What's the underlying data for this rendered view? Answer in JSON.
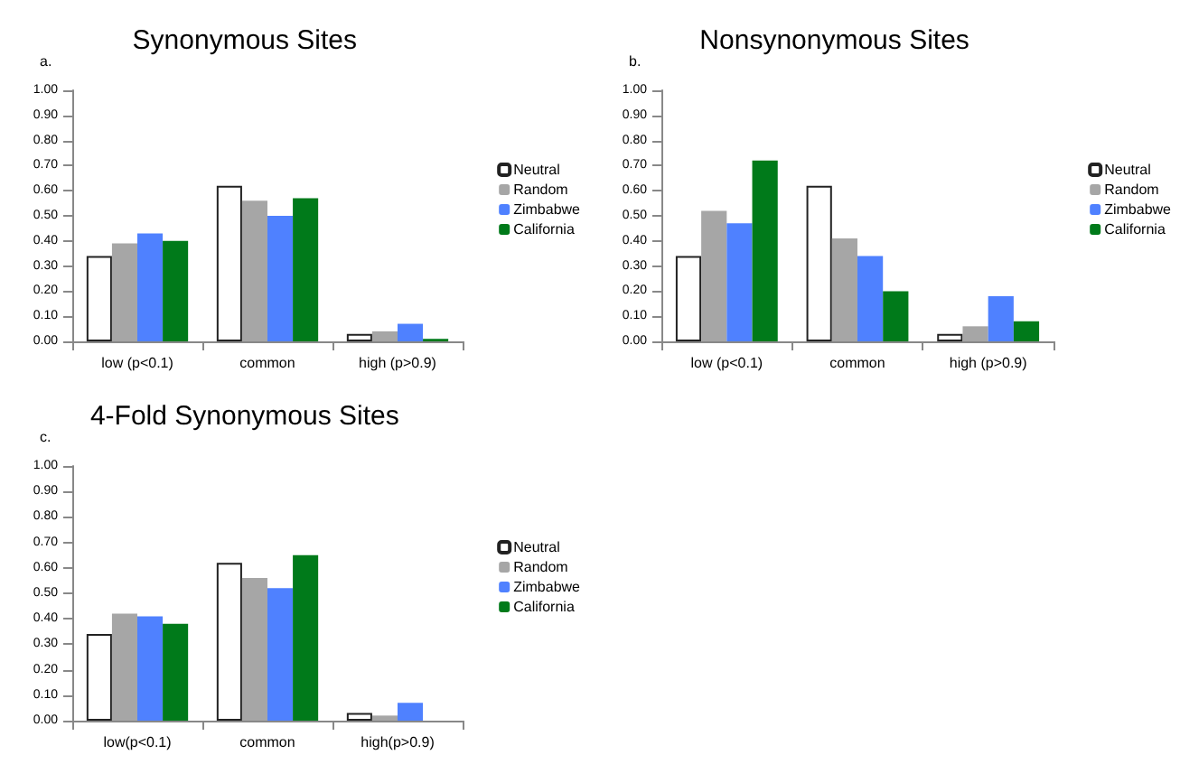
{
  "chart_data": [
    {
      "type": "bar",
      "title": "Synonymous Sites",
      "annotations": [
        "a."
      ],
      "categories": [
        "low (p<0.1)",
        "common",
        "high (p>0.9)"
      ],
      "series": [
        {
          "name": "Neutral",
          "color": "#ffffff",
          "values": [
            0.34,
            0.62,
            0.03
          ]
        },
        {
          "name": "Random",
          "color": "#a6a6a6",
          "values": [
            0.39,
            0.56,
            0.04
          ]
        },
        {
          "name": "Zimbabwe",
          "color": "#4f81ff",
          "values": [
            0.43,
            0.5,
            0.07
          ]
        },
        {
          "name": "California",
          "color": "#007a1a",
          "values": [
            0.4,
            0.57,
            0.01
          ]
        }
      ],
      "ylim": [
        0,
        1
      ],
      "yticks": [
        {
          "value": 0,
          "label": "0.00"
        },
        {
          "value": 0.1,
          "label": "0.10"
        },
        {
          "value": 0.2,
          "label": "0.20"
        },
        {
          "value": 0.3,
          "label": "0.30"
        },
        {
          "value": 0.4,
          "label": "0.40"
        },
        {
          "value": 0.5,
          "label": "0.50"
        },
        {
          "value": 0.6,
          "label": "0.60"
        },
        {
          "value": 0.7,
          "label": "0.70"
        },
        {
          "value": 0.8,
          "label": "0.80"
        },
        {
          "value": 0.9,
          "label": "0.90"
        },
        {
          "value": 1,
          "label": "1.00"
        }
      ],
      "grid": false,
      "legend": "right"
    },
    {
      "type": "bar",
      "title": "Nonsynonymous Sites",
      "annotations": [
        "b."
      ],
      "categories": [
        "low (p<0.1)",
        "common",
        "high (p>0.9)"
      ],
      "series": [
        {
          "name": "Neutral",
          "color": "#ffffff",
          "values": [
            0.34,
            0.62,
            0.03
          ]
        },
        {
          "name": "Random",
          "color": "#a6a6a6",
          "values": [
            0.52,
            0.41,
            0.06
          ]
        },
        {
          "name": "Zimbabwe",
          "color": "#4f81ff",
          "values": [
            0.47,
            0.34,
            0.18
          ]
        },
        {
          "name": "California",
          "color": "#007a1a",
          "values": [
            0.72,
            0.2,
            0.08
          ]
        }
      ],
      "ylim": [
        0,
        1
      ],
      "yticks": [
        {
          "value": 0,
          "label": "0.00"
        },
        {
          "value": 0.1,
          "label": "0.10"
        },
        {
          "value": 0.2,
          "label": "0.20"
        },
        {
          "value": 0.3,
          "label": "0.30"
        },
        {
          "value": 0.4,
          "label": "0.40"
        },
        {
          "value": 0.5,
          "label": "0.50"
        },
        {
          "value": 0.6,
          "label": "0.60"
        },
        {
          "value": 0.7,
          "label": "0.70"
        },
        {
          "value": 0.8,
          "label": "0.80"
        },
        {
          "value": 0.9,
          "label": "0.90"
        },
        {
          "value": 1,
          "label": "1.00"
        }
      ],
      "grid": false,
      "legend": "right"
    },
    {
      "type": "bar",
      "title": "4-Fold Synonymous Sites",
      "annotations": [
        "c."
      ],
      "categories": [
        "low(p<0.1)",
        "common",
        "high(p>0.9)"
      ],
      "series": [
        {
          "name": "Neutral",
          "color": "#ffffff",
          "values": [
            0.34,
            0.62,
            0.03
          ]
        },
        {
          "name": "Random",
          "color": "#a6a6a6",
          "values": [
            0.42,
            0.56,
            0.02
          ]
        },
        {
          "name": "Zimbabwe",
          "color": "#4f81ff",
          "values": [
            0.41,
            0.52,
            0.07
          ]
        },
        {
          "name": "California",
          "color": "#007a1a",
          "values": [
            0.38,
            0.65,
            0
          ]
        }
      ],
      "ylim": [
        0,
        1
      ],
      "yticks": [
        {
          "value": 0,
          "label": "0.00"
        },
        {
          "value": 0.1,
          "label": "0.10"
        },
        {
          "value": 0.2,
          "label": "0.20"
        },
        {
          "value": 0.3,
          "label": "0.30"
        },
        {
          "value": 0.4,
          "label": "0.40"
        },
        {
          "value": 0.5,
          "label": "0.50"
        },
        {
          "value": 0.6,
          "label": "0.60"
        },
        {
          "value": 0.7,
          "label": "0.70"
        },
        {
          "value": 0.8,
          "label": "0.80"
        },
        {
          "value": 0.9,
          "label": "0.90"
        },
        {
          "value": 1,
          "label": "1.00"
        }
      ],
      "grid": false,
      "legend": "right"
    }
  ]
}
